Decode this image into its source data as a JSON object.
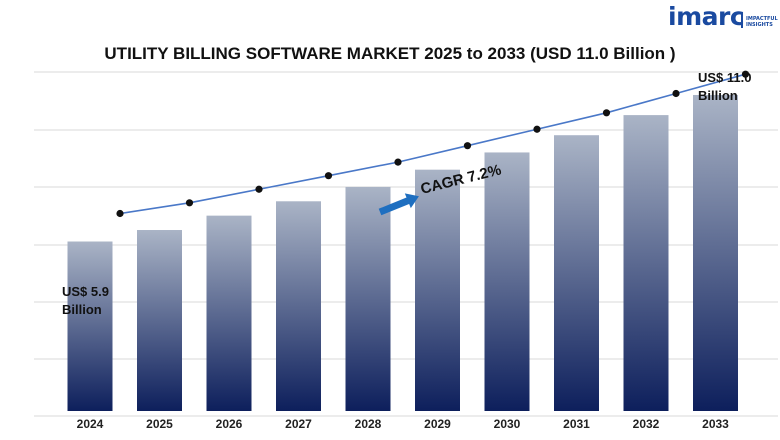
{
  "brand": {
    "name": "imarc",
    "tagline_1": "IMPACTFUL",
    "tagline_2": "INSIGHTS",
    "color": "#1a4aa0"
  },
  "chart_data": {
    "type": "bar",
    "title": "UTILITY BILLING SOFTWARE MARKET 2025 to 2033 (USD 11.0 Billion )",
    "categories": [
      "2024",
      "2025",
      "2026",
      "2027",
      "2028",
      "2029",
      "2030",
      "2031",
      "2032",
      "2033"
    ],
    "values": [
      5.9,
      6.3,
      6.8,
      7.3,
      7.8,
      8.4,
      9.0,
      9.6,
      10.3,
      11.0
    ],
    "unit": "USD Billion",
    "ylim": [
      0,
      11.8
    ],
    "grid": true,
    "trend_line": true,
    "annotations": {
      "start_label_line1": "US$ 5.9",
      "start_label_line2": "Billion",
      "end_label_line1": "US$ 11.0",
      "end_label_line2": "Billion",
      "cagr": "CAGR 7.2%"
    },
    "colors": {
      "bar_top": "#aab4c6",
      "bar_bottom": "#0d1f5c",
      "line": "#4a78c8",
      "marker": "#111111",
      "arrow": "#1f6fc0"
    }
  }
}
